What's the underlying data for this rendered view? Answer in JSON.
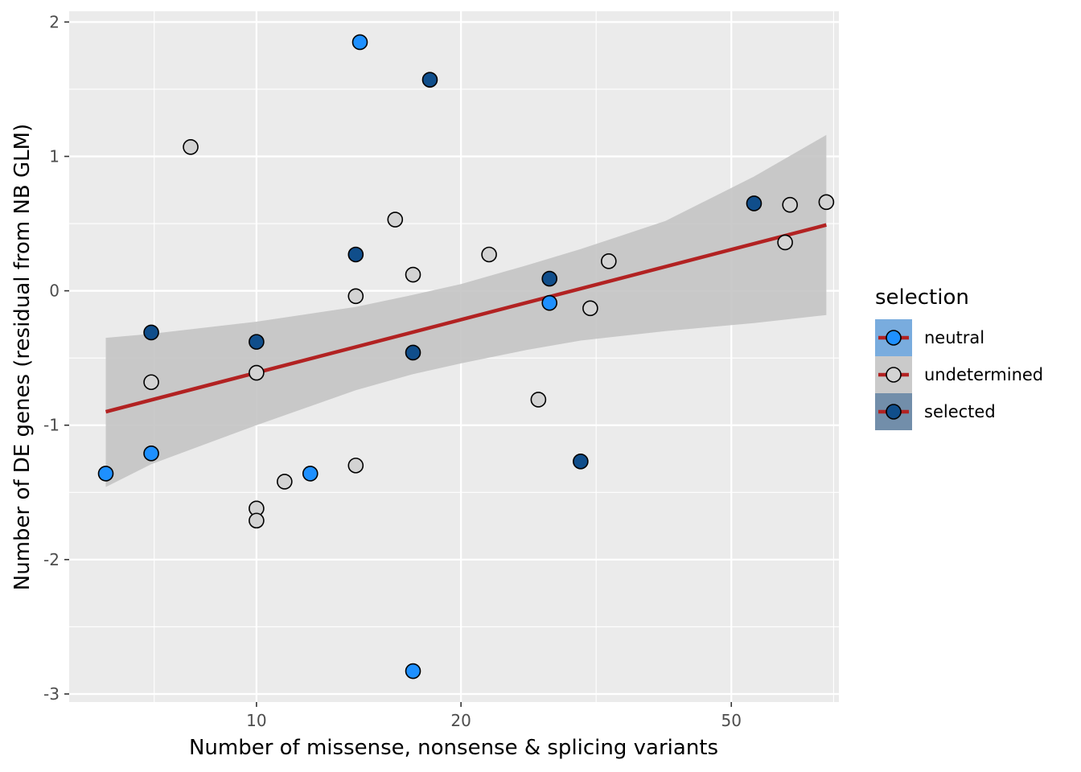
{
  "chart_data": {
    "type": "scatter",
    "xlabel": "Number of missense, nonsense & splicing variants",
    "ylabel": "Number of DE genes (residual from NB GLM)",
    "x_scale": "log10",
    "xlim": [
      5.3,
      72
    ],
    "ylim": [
      -3.06,
      2.08
    ],
    "x_ticks": [
      10,
      20,
      50
    ],
    "x_tick_labels": [
      "10",
      "20",
      "50"
    ],
    "y_ticks": [
      -3,
      -2,
      -1,
      0,
      1,
      2
    ],
    "y_tick_labels": [
      "-3",
      "-2",
      "-1",
      "0",
      "1",
      "2"
    ],
    "grid": true,
    "legend": {
      "title": "selection",
      "placement": "right",
      "entries": [
        {
          "label": "neutral",
          "key": "neutral"
        },
        {
          "label": "undetermined",
          "key": "undetermined"
        },
        {
          "label": "selected",
          "key": "selected"
        }
      ]
    },
    "colors": {
      "neutral": "#1e90ff",
      "undetermined": "#d3d3d3",
      "selected": "#104e8b",
      "fit_line": "#b22222",
      "ribbon": "#c4c4c4",
      "panel": "#ebebeb",
      "grid_major": "#ffffff"
    },
    "series": [
      {
        "name": "neutral",
        "points": [
          {
            "x": 6,
            "y": -1.36
          },
          {
            "x": 7,
            "y": -1.21
          },
          {
            "x": 12,
            "y": -1.36
          },
          {
            "x": 14.2,
            "y": 1.85
          },
          {
            "x": 17,
            "y": -2.83
          },
          {
            "x": 27,
            "y": -0.09
          }
        ]
      },
      {
        "name": "undetermined",
        "points": [
          {
            "x": 7,
            "y": -0.68
          },
          {
            "x": 8,
            "y": 1.07
          },
          {
            "x": 10,
            "y": -0.61
          },
          {
            "x": 10,
            "y": -1.62
          },
          {
            "x": 10,
            "y": -1.71
          },
          {
            "x": 11,
            "y": -1.42
          },
          {
            "x": 14,
            "y": -0.04
          },
          {
            "x": 14,
            "y": -1.3
          },
          {
            "x": 16,
            "y": 0.53
          },
          {
            "x": 17,
            "y": 0.12
          },
          {
            "x": 22,
            "y": 0.27
          },
          {
            "x": 26,
            "y": -0.81
          },
          {
            "x": 31,
            "y": -0.13
          },
          {
            "x": 33,
            "y": 0.22
          },
          {
            "x": 60,
            "y": 0.36
          },
          {
            "x": 61,
            "y": 0.64
          },
          {
            "x": 69,
            "y": 0.66
          }
        ]
      },
      {
        "name": "selected",
        "points": [
          {
            "x": 7,
            "y": -0.31
          },
          {
            "x": 10,
            "y": -0.38
          },
          {
            "x": 14,
            "y": 0.27
          },
          {
            "x": 17,
            "y": -0.46
          },
          {
            "x": 18,
            "y": 1.57
          },
          {
            "x": 27,
            "y": 0.09
          },
          {
            "x": 30,
            "y": -1.27
          },
          {
            "x": 54,
            "y": 0.65
          }
        ]
      }
    ],
    "fit": {
      "method": "lm",
      "x": [
        6,
        69
      ],
      "y": [
        -0.9,
        0.49
      ]
    },
    "confidence_band": {
      "x": [
        6,
        7,
        10,
        14,
        17,
        20,
        25,
        30,
        40,
        54,
        69
      ],
      "lower": [
        -1.46,
        -1.29,
        -1.0,
        -0.74,
        -0.62,
        -0.54,
        -0.44,
        -0.37,
        -0.3,
        -0.24,
        -0.18
      ],
      "upper": [
        -0.35,
        -0.32,
        -0.23,
        -0.12,
        -0.03,
        0.05,
        0.19,
        0.31,
        0.52,
        0.85,
        1.16
      ]
    }
  }
}
